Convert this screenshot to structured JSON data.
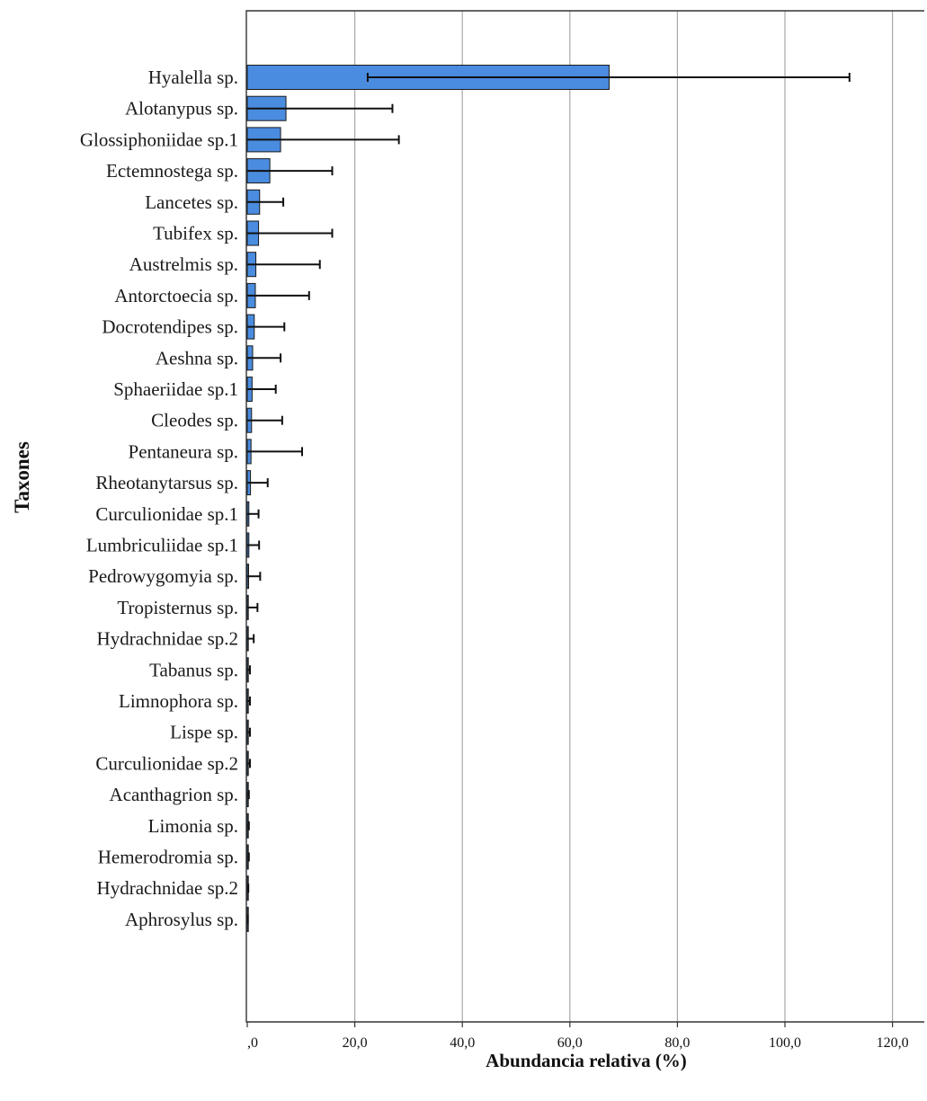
{
  "chart_data": {
    "type": "bar",
    "orientation": "horizontal",
    "title": "",
    "xlabel": "Abundancia relativa (%)",
    "ylabel": "Taxones",
    "xlim": [
      0,
      125
    ],
    "xticks": [
      0,
      20,
      40,
      60,
      80,
      100,
      120
    ],
    "xtick_labels": [
      ",0",
      "20,0",
      "40,0",
      "60,0",
      "80,0",
      "100,0",
      "120,0"
    ],
    "grid": "vertical",
    "bar_color": "#4a8cdf",
    "edge_color": "#1a1a1a",
    "categories": [
      "Hyalella sp.",
      "Alotanypus sp.",
      "Glossiphoniidae sp.1",
      "Ectemnostega sp.",
      "Lancetes sp.",
      "Tubifex sp.",
      "Austrelmis sp.",
      "Antorctoecia sp.",
      "Docrotendipes sp.",
      "Aeshna sp.",
      "Sphaeriidae sp.1",
      "Cleodes sp.",
      "Pentaneura sp.",
      "Rheotanytarsus sp.",
      "Curculionidae sp.1",
      "Lumbriculiidae sp.1",
      "Pedrowygomyia sp.",
      "Tropisternus sp.",
      "Hydrachnidae sp.2",
      "Tabanus sp.",
      "Limnophora sp.",
      "Lispe sp.",
      "Curculionidae sp.2",
      "Acanthagrion sp.",
      "Limonia sp.",
      "Hemerodromia sp.",
      "Hydrachnidae sp.2",
      "Aphrosylus sp."
    ],
    "values": [
      67.3,
      7.2,
      6.2,
      4.2,
      2.3,
      2.1,
      1.6,
      1.5,
      1.3,
      1.0,
      0.9,
      0.8,
      0.7,
      0.6,
      0.3,
      0.3,
      0.25,
      0.2,
      0.15,
      0.1,
      0.1,
      0.1,
      0.1,
      0.05,
      0.05,
      0.05,
      0.05,
      0.02
    ],
    "error_low": [
      22.4,
      0.0,
      0.0,
      0.0,
      0.0,
      0.0,
      0.0,
      0.0,
      0.0,
      0.0,
      0.0,
      0.0,
      0.0,
      0.0,
      0.0,
      0.0,
      0.0,
      0.0,
      0.0,
      0.0,
      0.0,
      0.0,
      0.0,
      0.0,
      0.0,
      0.0,
      0.0,
      0.0
    ],
    "error_high": [
      112.0,
      27.0,
      28.2,
      15.8,
      6.7,
      15.8,
      13.5,
      11.5,
      6.9,
      6.2,
      5.3,
      6.5,
      10.2,
      3.8,
      2.1,
      2.2,
      2.4,
      1.9,
      1.2,
      0.5,
      0.5,
      0.5,
      0.5,
      0.3,
      0.3,
      0.3,
      0.2,
      0.1
    ]
  }
}
